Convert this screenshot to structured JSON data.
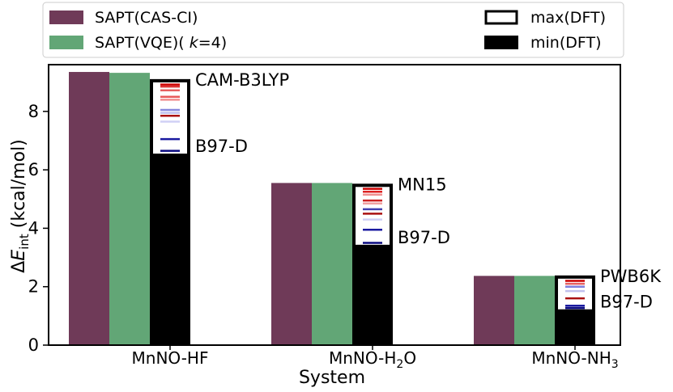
{
  "chart_data": {
    "type": "bar",
    "xlabel": "System",
    "ylabel": "ΔE_int (kcal/mol)",
    "ylabel_parts": {
      "delta": "Δ",
      "E": "E",
      "sub": "int",
      "unit": " (kcal/mol)"
    },
    "ylim": [
      0,
      9.6
    ],
    "yticks": [
      0,
      2,
      4,
      6,
      8
    ],
    "categories": [
      "MnNO-HF",
      "MnNO-H2O",
      "MnNO-NH3"
    ],
    "category_labels": [
      {
        "main": "MnNO-HF",
        "sub": ""
      },
      {
        "main": "MnNO-H",
        "sub": "2",
        "tail": "O"
      },
      {
        "main": "MnNO-NH",
        "sub": "3",
        "tail": ""
      }
    ],
    "series": [
      {
        "name": "SAPT(CAS-CI)",
        "color": "#6f3a58",
        "values": [
          9.35,
          5.55,
          2.37
        ]
      },
      {
        "name": "SAPT(VQE)(k=4)",
        "color": "#62a676",
        "values": [
          9.32,
          5.55,
          2.37
        ]
      }
    ],
    "dft_range": {
      "max_label": "max(DFT)",
      "min_label": "min(DFT)",
      "max": [
        9.05,
        5.47,
        2.33
      ],
      "min": [
        6.5,
        3.38,
        1.17
      ],
      "max_functional": [
        "CAM-B3LYP",
        "MN15",
        "PWB6K"
      ],
      "min_functional": [
        "B97-D",
        "B97-D",
        "B97-D"
      ],
      "functional_values": [
        [
          {
            "v": 8.92,
            "c": "#cc0000"
          },
          {
            "v": 8.85,
            "c": "#dd3333"
          },
          {
            "v": 8.72,
            "c": "#e66060"
          },
          {
            "v": 8.5,
            "c": "#e85a5a"
          },
          {
            "v": 8.4,
            "c": "#f09090"
          },
          {
            "v": 8.05,
            "c": "#8888dd"
          },
          {
            "v": 7.95,
            "c": "#c0c0ee"
          },
          {
            "v": 7.85,
            "c": "#aa1111"
          },
          {
            "v": 7.65,
            "c": "#d0d0f5"
          },
          {
            "v": 7.05,
            "c": "#1a1aa0"
          },
          {
            "v": 6.65,
            "c": "#0a0a80"
          }
        ],
        [
          {
            "v": 5.35,
            "c": "#cc0000"
          },
          {
            "v": 5.25,
            "c": "#dd2222"
          },
          {
            "v": 5.15,
            "c": "#f09090"
          },
          {
            "v": 4.95,
            "c": "#cc2222"
          },
          {
            "v": 4.85,
            "c": "#f0a0a0"
          },
          {
            "v": 4.65,
            "c": "#4040b0"
          },
          {
            "v": 4.5,
            "c": "#aa1111"
          },
          {
            "v": 4.3,
            "c": "#d0d0f5"
          },
          {
            "v": 3.95,
            "c": "#1a1aa0"
          },
          {
            "v": 3.5,
            "c": "#0a0a80"
          }
        ],
        [
          {
            "v": 2.2,
            "c": "#cc0000"
          },
          {
            "v": 2.1,
            "c": "#e66060"
          },
          {
            "v": 2.0,
            "c": "#8080dd"
          },
          {
            "v": 1.85,
            "c": "#c0c0ee"
          },
          {
            "v": 1.6,
            "c": "#aa1111"
          },
          {
            "v": 1.35,
            "c": "#1a1aa0"
          },
          {
            "v": 1.27,
            "c": "#0a0a80"
          }
        ]
      ]
    },
    "legend_position": "top"
  }
}
